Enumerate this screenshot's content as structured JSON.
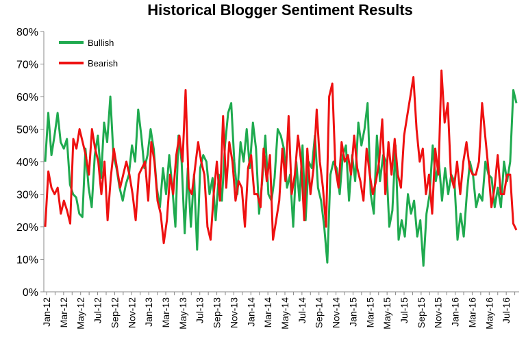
{
  "chart_data": {
    "type": "line",
    "title": "Historical Blogger Sentiment Results",
    "xlabel": "",
    "ylabel": "",
    "ylim": [
      0,
      80
    ],
    "y_ticks": [
      "0%",
      "10%",
      "20%",
      "30%",
      "40%",
      "50%",
      "60%",
      "70%",
      "80%"
    ],
    "x_tick_labels": [
      "Jan-12",
      "Mar-12",
      "May-12",
      "Jul-12",
      "Sep-12",
      "Nov-12",
      "Jan-13",
      "Mar-13",
      "May-13",
      "Jul-13",
      "Sep-13",
      "Nov-13",
      "Jan-14",
      "Mar-14",
      "May-14",
      "Jul-14",
      "Sep-14",
      "Nov-14",
      "Jan-15",
      "Mar-15",
      "May-15",
      "Jul-15",
      "Sep-15",
      "Nov-15",
      "Jan-16",
      "Mar-16",
      "May-16",
      "Jul-16"
    ],
    "grid": false,
    "legend_position": "top-left",
    "series": [
      {
        "name": "Bullish",
        "color": "#1faa4f",
        "values": [
          40,
          55,
          42,
          48,
          55,
          46,
          44,
          47,
          33,
          30,
          29,
          24,
          23,
          44,
          32,
          26,
          42,
          48,
          35,
          52,
          46,
          60,
          42,
          38,
          32,
          28,
          33,
          36,
          45,
          40,
          56,
          48,
          38,
          42,
          50,
          44,
          32,
          26,
          38,
          30,
          42,
          32,
          20,
          48,
          40,
          18,
          38,
          20,
          36,
          13,
          38,
          42,
          40,
          30,
          35,
          22,
          36,
          28,
          45,
          55,
          58,
          40,
          30,
          46,
          40,
          50,
          38,
          52,
          44,
          24,
          34,
          48,
          30,
          28,
          35,
          50,
          48,
          44,
          32,
          36,
          20,
          40,
          28,
          45,
          22,
          40,
          38,
          48,
          32,
          28,
          20,
          9,
          36,
          40,
          38,
          30,
          42,
          45,
          28,
          42,
          34,
          52,
          45,
          50,
          58,
          30,
          24,
          48,
          34,
          42,
          40,
          20,
          25,
          45,
          16,
          22,
          17,
          30,
          24,
          28,
          17,
          22,
          8,
          24,
          30,
          45,
          34,
          40,
          28,
          38,
          30,
          36,
          34,
          16,
          24,
          17,
          30,
          40,
          36,
          26,
          30,
          28,
          40,
          36,
          35,
          26,
          32,
          26,
          40,
          34,
          40,
          62,
          58
        ],
        "x_index_start": 0
      },
      {
        "name": "Bearish",
        "color": "#ee1111",
        "values": [
          20,
          37,
          32,
          30,
          32,
          24,
          28,
          25,
          21,
          47,
          44,
          50,
          46,
          42,
          36,
          50,
          44,
          40,
          30,
          40,
          22,
          35,
          44,
          38,
          32,
          36,
          40,
          36,
          30,
          22,
          36,
          38,
          40,
          28,
          46,
          40,
          28,
          24,
          15,
          22,
          36,
          30,
          42,
          48,
          40,
          62,
          32,
          30,
          38,
          46,
          40,
          36,
          20,
          16,
          30,
          40,
          28,
          54,
          32,
          46,
          40,
          28,
          34,
          32,
          20,
          38,
          42,
          30,
          30,
          26,
          44,
          34,
          42,
          16,
          22,
          28,
          44,
          34,
          54,
          30,
          36,
          48,
          40,
          22,
          44,
          30,
          38,
          56,
          40,
          32,
          20,
          60,
          64,
          38,
          32,
          46,
          40,
          42,
          36,
          48,
          38,
          34,
          28,
          44,
          36,
          30,
          34,
          40,
          53,
          30,
          46,
          36,
          47,
          36,
          32,
          48,
          54,
          60,
          66,
          50,
          40,
          44,
          30,
          36,
          24,
          44,
          36,
          68,
          52,
          58,
          36,
          32,
          40,
          30,
          40,
          46,
          38,
          36,
          36,
          40,
          58,
          48,
          38,
          26,
          32,
          42,
          30,
          30,
          36,
          36,
          21,
          19
        ]
      }
    ]
  }
}
